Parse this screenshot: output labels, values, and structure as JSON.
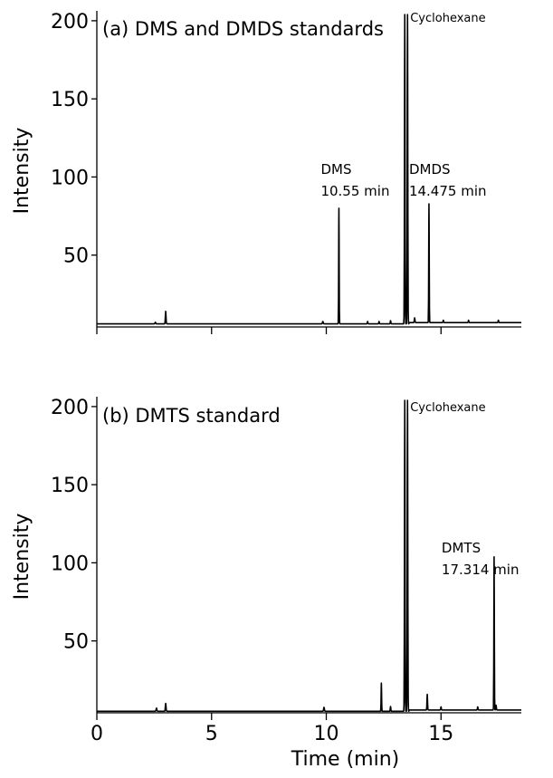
{
  "chart_data": [
    {
      "type": "line",
      "title": "(a) DMS and DMDS standards",
      "xlabel": "",
      "ylabel": "Intensity",
      "xlim": [
        0,
        18.5
      ],
      "ylim": [
        4,
        204
      ],
      "x_ticks": [
        0,
        5,
        10,
        15
      ],
      "x_tick_labels": [
        "",
        "",
        "",
        ""
      ],
      "y_ticks": [
        50,
        100,
        150,
        200
      ],
      "y_tick_labels": [
        "50",
        "100",
        "150",
        "200"
      ],
      "grid": false,
      "series": [
        {
          "color": "#000000",
          "baseline": 6,
          "peaks": [
            {
              "x": 2.55,
              "y": 7,
              "w": 0.04
            },
            {
              "x": 3.0,
              "y": 14,
              "w": 0.035
            },
            {
              "x": 9.85,
              "y": 7.5,
              "w": 0.04
            },
            {
              "x": 10.55,
              "y": 80,
              "w": 0.025
            },
            {
              "x": 11.8,
              "y": 7.5,
              "w": 0.03
            },
            {
              "x": 12.3,
              "y": 7.5,
              "w": 0.03
            },
            {
              "x": 12.8,
              "y": 8,
              "w": 0.03
            },
            {
              "x": 13.42,
              "y": 204,
              "w": 0.03
            },
            {
              "x": 13.54,
              "y": 204,
              "w": 0.03
            },
            {
              "x": 13.85,
              "y": 9,
              "w": 0.035
            },
            {
              "x": 14.475,
              "y": 82,
              "w": 0.025
            },
            {
              "x": 15.1,
              "y": 7.5,
              "w": 0.03
            },
            {
              "x": 16.2,
              "y": 7.5,
              "w": 0.03
            },
            {
              "x": 17.5,
              "y": 7.5,
              "w": 0.03
            }
          ]
        }
      ],
      "annotations": [
        {
          "text": "DMS",
          "x": 10.55
        },
        {
          "text": "10.55 min",
          "x": 10.55
        },
        {
          "text": "Cyclohexane",
          "x": 13.5
        },
        {
          "text": "DMDS",
          "x": 14.475
        },
        {
          "text": "14.475 min",
          "x": 14.475
        }
      ]
    },
    {
      "type": "line",
      "title": "(b) DMTS standard",
      "xlabel": "Time (min)",
      "ylabel": "Intensity",
      "xlim": [
        0,
        18.5
      ],
      "ylim": [
        4,
        204
      ],
      "x_ticks": [
        0,
        5,
        10,
        15
      ],
      "x_tick_labels": [
        "0",
        "5",
        "10",
        "15"
      ],
      "y_ticks": [
        50,
        100,
        150,
        200
      ],
      "y_tick_labels": [
        "50",
        "100",
        "150",
        "200"
      ],
      "grid": false,
      "series": [
        {
          "color": "#000000",
          "baseline": 5,
          "peaks": [
            {
              "x": 2.6,
              "y": 7,
              "w": 0.04
            },
            {
              "x": 3.0,
              "y": 10,
              "w": 0.035
            },
            {
              "x": 9.9,
              "y": 7.5,
              "w": 0.04
            },
            {
              "x": 12.4,
              "y": 23,
              "w": 0.025
            },
            {
              "x": 12.8,
              "y": 8,
              "w": 0.03
            },
            {
              "x": 13.42,
              "y": 204,
              "w": 0.03
            },
            {
              "x": 13.54,
              "y": 204,
              "w": 0.03
            },
            {
              "x": 14.4,
              "y": 15,
              "w": 0.03
            },
            {
              "x": 15.0,
              "y": 7,
              "w": 0.03
            },
            {
              "x": 16.6,
              "y": 7,
              "w": 0.03
            },
            {
              "x": 17.314,
              "y": 103,
              "w": 0.025
            },
            {
              "x": 17.4,
              "y": 8,
              "w": 0.03
            }
          ]
        }
      ],
      "annotations": [
        {
          "text": "Cyclohexane",
          "x": 13.5
        },
        {
          "text": "DMTS",
          "x": 17.314
        },
        {
          "text": "17.314 min",
          "x": 17.314
        }
      ]
    }
  ]
}
